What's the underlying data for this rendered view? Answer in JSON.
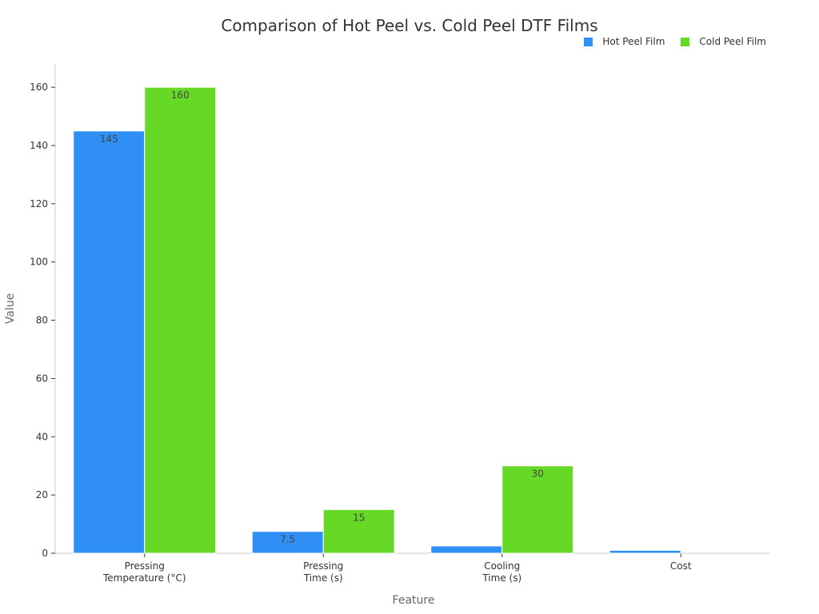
{
  "chart_data": {
    "type": "bar",
    "title": "Comparison of Hot Peel vs. Cold Peel DTF Films",
    "xlabel": "Feature",
    "ylabel": "Value",
    "ylim": [
      0,
      168
    ],
    "yticks": [
      0,
      20,
      40,
      60,
      80,
      100,
      120,
      140,
      160
    ],
    "categories": [
      [
        "Pressing",
        "Temperature (°C)"
      ],
      [
        "Pressing",
        "Time (s)"
      ],
      [
        "Cooling",
        "Time (s)"
      ],
      [
        "Cost"
      ]
    ],
    "series": [
      {
        "name": "Hot Peel Film",
        "color": "#2f8ff5",
        "values": [
          145,
          7.5,
          2.5,
          1
        ],
        "labels": [
          "145",
          "7.5",
          "",
          ""
        ]
      },
      {
        "name": "Cold Peel Film",
        "color": "#66d926",
        "values": [
          160,
          15,
          30,
          0
        ],
        "labels": [
          "160",
          "15",
          "30",
          ""
        ]
      }
    ],
    "legend_position": "top-right",
    "grid": false
  }
}
